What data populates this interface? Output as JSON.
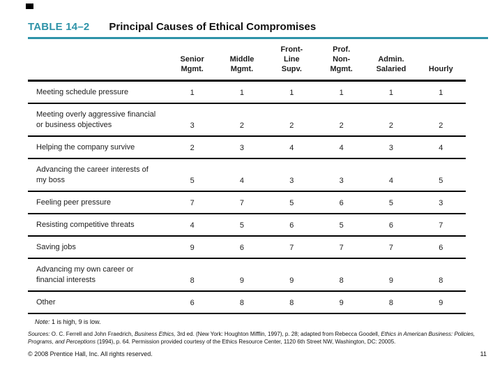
{
  "slide": {
    "table_label": "TABLE 14–2",
    "title": "Principal Causes of Ethical Compromises",
    "accent_color": "#2e93a8",
    "note_label": "Note:",
    "note_text": " 1 is high, 9 is low.",
    "sources": {
      "label": "Sources: ",
      "seg1": "O. C. Ferrell and John Fraedrich, ",
      "seg2": "Business Ethics,",
      "seg3": " 3rd ed. (New York: Houghton Mifflin, 1997), p. 28; adapted from Rebecca Goodell, ",
      "seg4": "Ethics in American Business: Policies, Programs, and Perceptions",
      "seg5": " (1994), p. 64. Permission provided courtesy of the Ethics Resource Center, 1120 6th Street NW, Washington, DC: 20005."
    },
    "copyright": "© 2008 Prentice Hall, Inc. All rights reserved.",
    "page_number": "11"
  },
  "chart_data": {
    "type": "table",
    "title": "Principal Causes of Ethical Compromises",
    "columns": [
      "Senior\nMgmt.",
      "Middle\nMgmt.",
      "Front-\nLine\nSupv.",
      "Prof.\nNon-\nMgmt.",
      "Admin.\nSalaried",
      "Hourly"
    ],
    "rows": [
      {
        "label": "Meeting schedule pressure",
        "values": [
          1,
          1,
          1,
          1,
          1,
          1
        ]
      },
      {
        "label": "Meeting overly aggressive financial or business objectives",
        "values": [
          3,
          2,
          2,
          2,
          2,
          2
        ]
      },
      {
        "label": "Helping the company survive",
        "values": [
          2,
          3,
          4,
          4,
          3,
          4
        ]
      },
      {
        "label": "Advancing the career interests of my boss",
        "values": [
          5,
          4,
          3,
          3,
          4,
          5
        ]
      },
      {
        "label": "Feeling peer pressure",
        "values": [
          7,
          7,
          5,
          6,
          5,
          3
        ]
      },
      {
        "label": "Resisting competitive threats",
        "values": [
          4,
          5,
          6,
          5,
          6,
          7
        ]
      },
      {
        "label": "Saving jobs",
        "values": [
          9,
          6,
          7,
          7,
          7,
          6
        ]
      },
      {
        "label": "Advancing my own career or financial interests",
        "values": [
          8,
          9,
          9,
          8,
          9,
          8
        ]
      },
      {
        "label": "Other",
        "values": [
          6,
          8,
          8,
          9,
          8,
          9
        ]
      }
    ],
    "note": "1 is high, 9 is low."
  }
}
